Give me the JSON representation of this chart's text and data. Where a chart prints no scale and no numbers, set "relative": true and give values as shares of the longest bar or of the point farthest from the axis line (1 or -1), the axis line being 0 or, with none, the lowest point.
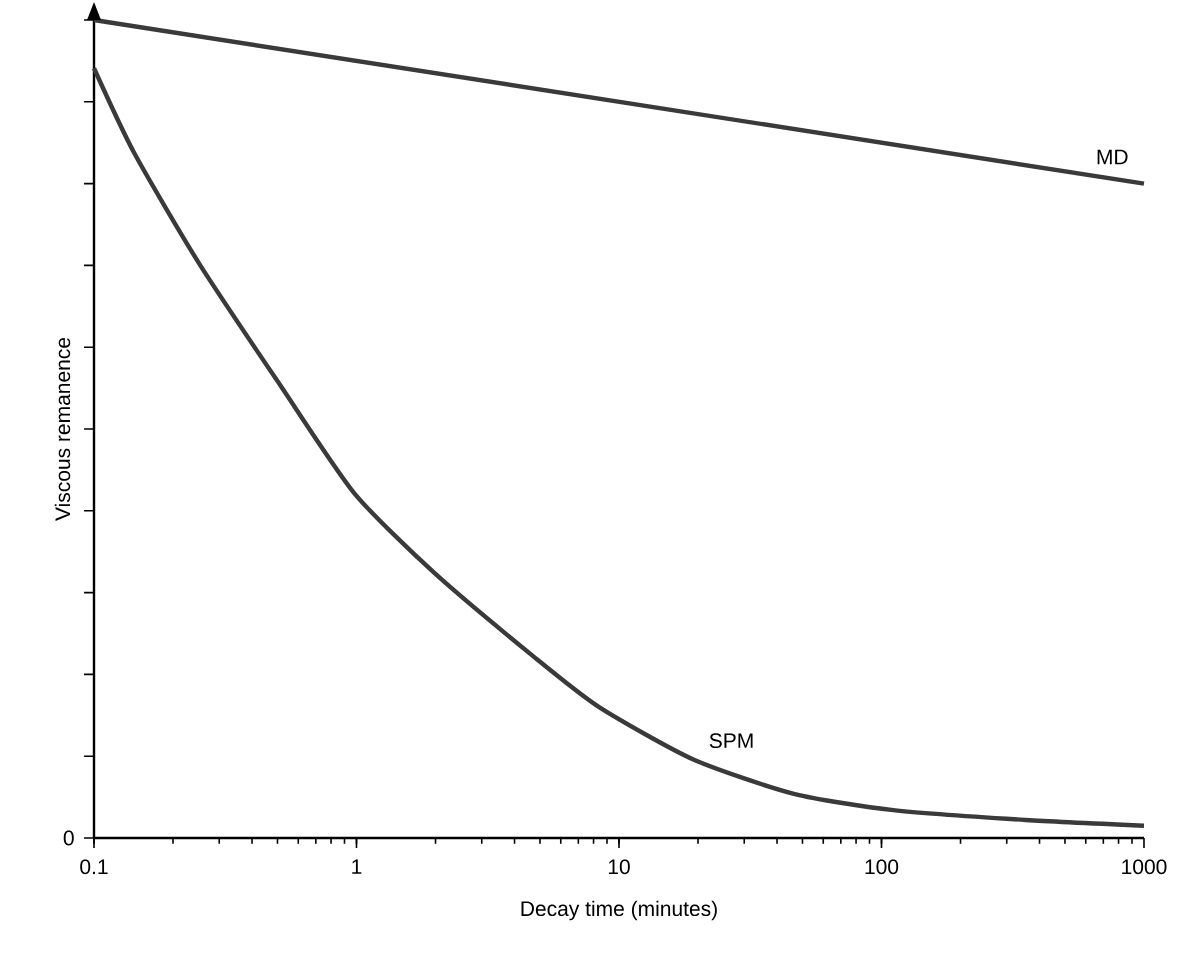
{
  "chart_data": {
    "type": "line",
    "xlabel": "Decay time (minutes)",
    "ylabel": "Viscous remanence",
    "relative": true,
    "log": "x",
    "xlim": [
      0.1,
      1000
    ],
    "xticks": [
      0.1,
      1,
      10,
      100,
      1000
    ],
    "annotations": [
      "0"
    ],
    "legend": false,
    "grid": false,
    "marker": "none",
    "line_style": "solid",
    "series": [
      {
        "name": "MD",
        "color": "#3a3a3a",
        "x": [
          0.1,
          1000
        ],
        "values": [
          1.0,
          0.8
        ]
      },
      {
        "name": "SPM",
        "color": "#3a3a3a",
        "x": [
          0.1,
          0.142,
          0.253,
          0.511,
          0.978,
          1.98,
          4.72,
          8.4,
          19.2,
          46.4,
          111,
          354,
          1000
        ],
        "values": [
          0.941,
          0.838,
          0.701,
          0.554,
          0.422,
          0.324,
          0.222,
          0.16,
          0.096,
          0.054,
          0.034,
          0.022,
          0.015
        ]
      }
    ]
  }
}
